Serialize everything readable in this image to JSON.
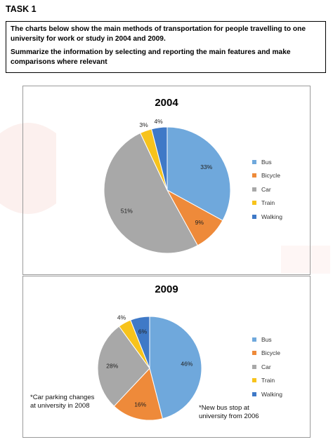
{
  "task": {
    "title": "TASK 1",
    "prompt": "The charts below show the main methods of transportation for people travelling to one university for work or study in 2004 and 2009.",
    "instruction": "Summarize the information by selecting and reporting the main features and make comparisons where relevant"
  },
  "colors": {
    "Bus": "#6fa8dc",
    "Bicycle": "#ee8a3a",
    "Car": "#a8a8a8",
    "Train": "#f7c31c",
    "Walking": "#3f79c7"
  },
  "chart_data": [
    {
      "type": "pie",
      "title": "2004",
      "categories": [
        "Bus",
        "Bicycle",
        "Car",
        "Train",
        "Walking"
      ],
      "values": [
        33,
        9,
        51,
        3,
        4
      ],
      "labels": [
        "33%",
        "9%",
        "51%",
        "3%",
        "4%"
      ],
      "legend": "right",
      "annotations": []
    },
    {
      "type": "pie",
      "title": "2009",
      "categories": [
        "Bus",
        "Bicycle",
        "Car",
        "Train",
        "Walking"
      ],
      "values": [
        46,
        16,
        28,
        4,
        6
      ],
      "labels": [
        "46%",
        "16%",
        "28%",
        "4%",
        "6%"
      ],
      "legend": "right",
      "annotations": [
        "*Car parking changes at university in 2008",
        "*New bus stop at university from 2006"
      ]
    }
  ]
}
